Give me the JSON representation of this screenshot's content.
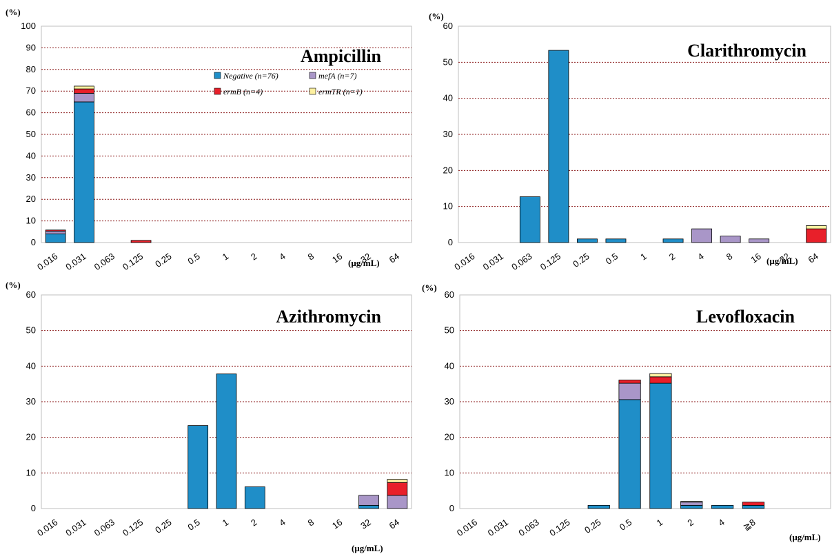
{
  "colors": {
    "Negative": "#1f8ec8",
    "mefA": "#a996c8",
    "ermB": "#e8202a",
    "ermTR": "#fdf0a0",
    "grid": "#8b1a1a"
  },
  "legend": [
    {
      "key": "Negative",
      "label": "Negative (n=76)"
    },
    {
      "key": "mefA",
      "label": "mefA (n=7)"
    },
    {
      "key": "ermB",
      "label": "ermB (n=4)"
    },
    {
      "key": "ermTR",
      "label": "ermTR (n=1)"
    }
  ],
  "chart_data": [
    {
      "type": "bar",
      "title": "Ampicillin",
      "ylabel": "(%)",
      "xlabel": "(μg/mL)",
      "ylim": [
        0,
        100
      ],
      "yticks": [
        0,
        10,
        20,
        30,
        40,
        50,
        60,
        70,
        80,
        90,
        100
      ],
      "grid": true,
      "legend_position": "top-right",
      "categories": [
        "0.016",
        "0.031",
        "0.063",
        "0.125",
        "0.25",
        "0.5",
        "1",
        "2",
        "4",
        "8",
        "16",
        "32",
        "64"
      ],
      "series": [
        {
          "name": "Negative (n=76)",
          "key": "Negative",
          "values": [
            4.0,
            65.0,
            0,
            0,
            0,
            0,
            0,
            0,
            0,
            0,
            0,
            0,
            0
          ]
        },
        {
          "name": "mefA (n=7)",
          "key": "mefA",
          "values": [
            1.3,
            4.0,
            0,
            0,
            0,
            0,
            0,
            0,
            0,
            0,
            0,
            0,
            0
          ]
        },
        {
          "name": "ermB (n=4)",
          "key": "ermB",
          "values": [
            0.5,
            2.0,
            0,
            1.0,
            0,
            0,
            0,
            0,
            0,
            0,
            0,
            0,
            0
          ]
        },
        {
          "name": "ermTR (n=1)",
          "key": "ermTR",
          "values": [
            0,
            1.3,
            0,
            0,
            0,
            0,
            0,
            0,
            0,
            0,
            0,
            0,
            0
          ]
        }
      ]
    },
    {
      "type": "bar",
      "title": "Clarithromycin",
      "ylabel": "(%)",
      "xlabel": "(μg/mL)",
      "ylim": [
        0,
        60
      ],
      "yticks": [
        0,
        10,
        20,
        30,
        40,
        50,
        60
      ],
      "grid": true,
      "categories": [
        "0.016",
        "0.031",
        "0.063",
        "0.125",
        "0.25",
        "0.5",
        "1",
        "2",
        "4",
        "8",
        "16",
        "32",
        "64"
      ],
      "series": [
        {
          "name": "Negative (n=76)",
          "key": "Negative",
          "values": [
            0,
            0,
            12.7,
            53.3,
            1.0,
            1.0,
            0,
            1.0,
            0,
            0,
            0,
            0,
            0
          ]
        },
        {
          "name": "mefA (n=7)",
          "key": "mefA",
          "values": [
            0,
            0,
            0,
            0,
            0,
            0,
            0,
            0,
            3.8,
            1.8,
            1.0,
            0,
            0
          ]
        },
        {
          "name": "ermB (n=4)",
          "key": "ermB",
          "values": [
            0,
            0,
            0,
            0,
            0,
            0,
            0,
            0,
            0,
            0,
            0,
            0,
            3.8
          ]
        },
        {
          "name": "ermTR (n=1)",
          "key": "ermTR",
          "values": [
            0,
            0,
            0,
            0,
            0,
            0,
            0,
            0,
            0,
            0,
            0,
            0,
            0.9
          ]
        }
      ]
    },
    {
      "type": "bar",
      "title": "Azithromycin",
      "ylabel": "(%)",
      "xlabel": "(μg/mL)",
      "ylim": [
        0,
        60
      ],
      "yticks": [
        0,
        10,
        20,
        30,
        40,
        50,
        60
      ],
      "grid": true,
      "categories": [
        "0.016",
        "0.031",
        "0.063",
        "0.125",
        "0.25",
        "0.5",
        "1",
        "2",
        "4",
        "8",
        "16",
        "32",
        "64"
      ],
      "series": [
        {
          "name": "Negative (n=76)",
          "key": "Negative",
          "values": [
            0,
            0,
            0,
            0,
            0,
            23.3,
            37.8,
            6.1,
            0,
            0,
            0,
            0.9,
            0
          ]
        },
        {
          "name": "mefA (n=7)",
          "key": "mefA",
          "values": [
            0,
            0,
            0,
            0,
            0,
            0,
            0,
            0,
            0,
            0,
            0,
            2.8,
            3.7
          ]
        },
        {
          "name": "ermB (n=4)",
          "key": "ermB",
          "values": [
            0,
            0,
            0,
            0,
            0,
            0,
            0,
            0,
            0,
            0,
            0,
            0,
            3.6
          ]
        },
        {
          "name": "ermTR (n=1)",
          "key": "ermTR",
          "values": [
            0,
            0,
            0,
            0,
            0,
            0,
            0,
            0,
            0,
            0,
            0,
            0,
            0.9
          ]
        }
      ]
    },
    {
      "type": "bar",
      "title": "Levofloxacin",
      "ylabel": "(%)",
      "xlabel": "(μg/mL)",
      "ylim": [
        0,
        60
      ],
      "yticks": [
        0,
        10,
        20,
        30,
        40,
        50,
        60
      ],
      "grid": true,
      "categories": [
        "0.016",
        "0.031",
        "0.063",
        "0.125",
        "0.25",
        "0.5",
        "1",
        "2",
        "4",
        "≧8",
        "",
        ""
      ],
      "series": [
        {
          "name": "Negative (n=76)",
          "key": "Negative",
          "values": [
            0,
            0,
            0,
            0,
            0.9,
            30.6,
            35.2,
            0.9,
            0.9,
            0.9,
            0,
            0
          ]
        },
        {
          "name": "mefA (n=7)",
          "key": "mefA",
          "values": [
            0,
            0,
            0,
            0,
            0,
            4.6,
            0,
            0.9,
            0,
            0,
            0,
            0
          ]
        },
        {
          "name": "ermB (n=4)",
          "key": "ermB",
          "values": [
            0,
            0,
            0,
            0,
            0,
            0.9,
            1.8,
            0,
            0,
            0.9,
            0,
            0
          ]
        },
        {
          "name": "ermTR (n=1)",
          "key": "ermTR",
          "values": [
            0,
            0,
            0,
            0,
            0,
            0,
            0.9,
            0.2,
            0,
            0,
            0,
            0
          ]
        }
      ]
    }
  ]
}
